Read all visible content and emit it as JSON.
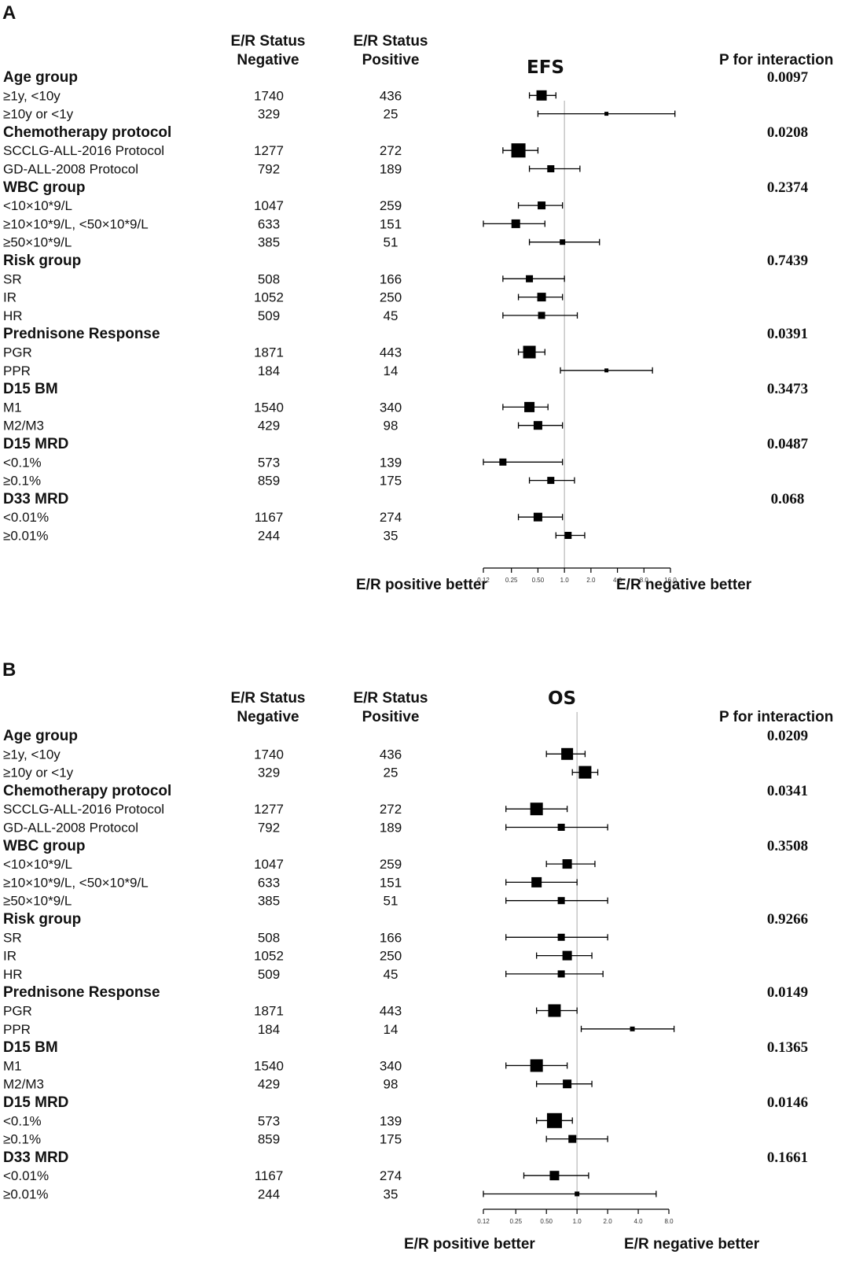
{
  "headers": {
    "negative": [
      "E/R Status",
      "Negative"
    ],
    "positive": [
      "E/R Status",
      "Positive"
    ],
    "p_label": "P for interaction"
  },
  "chart_data": [
    {
      "panel": "A",
      "type": "forest",
      "title": "EFS",
      "scale": "log2",
      "xlim": [
        0.12,
        16.0
      ],
      "ref_line": 1.0,
      "ticks": [
        0.12,
        0.25,
        0.5,
        1.0,
        2.0,
        4.0,
        8.0,
        16.0
      ],
      "tick_labels": [
        "0.12",
        "0.25",
        "0.50",
        "1.0",
        "2.0",
        "4.0",
        "8.0",
        "16.0"
      ],
      "left_label": "E/R positive better",
      "right_label": "E/R negative better",
      "groups": [
        {
          "name": "Age group",
          "p": "0.0097",
          "rows": [
            {
              "label": "≥1y, <10y",
              "neg": "1740",
              "pos": "436",
              "hr": 0.55,
              "lo": 0.4,
              "hi": 0.8,
              "size": 13
            },
            {
              "label": "≥10y or <1y",
              "neg": "329",
              "pos": "25",
              "hr": 3.0,
              "lo": 0.5,
              "hi": 18.0,
              "size": 5
            }
          ]
        },
        {
          "name": "Chemotherapy protocol",
          "p": "0.0208",
          "rows": [
            {
              "label": "SCCLG-ALL-2016 Protocol",
              "neg": "1277",
              "pos": "272",
              "hr": 0.3,
              "lo": 0.2,
              "hi": 0.5,
              "size": 18
            },
            {
              "label": "GD-ALL-2008 Protocol",
              "neg": "792",
              "pos": "189",
              "hr": 0.7,
              "lo": 0.4,
              "hi": 1.5,
              "size": 9
            }
          ]
        },
        {
          "name": "WBC group",
          "p": "0.2374",
          "rows": [
            {
              "label": "<10×10*9/L",
              "neg": "1047",
              "pos": "259",
              "hr": 0.55,
              "lo": 0.3,
              "hi": 0.95,
              "size": 10
            },
            {
              "label": "≥10×10*9/L, <50×10*9/L",
              "neg": "633",
              "pos": "151",
              "hr": 0.28,
              "lo": 0.12,
              "hi": 0.6,
              "size": 11
            },
            {
              "label": "≥50×10*9/L",
              "neg": "385",
              "pos": "51",
              "hr": 0.95,
              "lo": 0.4,
              "hi": 2.5,
              "size": 7
            }
          ]
        },
        {
          "name": "Risk group",
          "p": "0.7439",
          "rows": [
            {
              "label": "SR",
              "neg": "508",
              "pos": "166",
              "hr": 0.4,
              "lo": 0.2,
              "hi": 1.0,
              "size": 9
            },
            {
              "label": "IR",
              "neg": "1052",
              "pos": "250",
              "hr": 0.55,
              "lo": 0.3,
              "hi": 0.95,
              "size": 11
            },
            {
              "label": "HR",
              "neg": "509",
              "pos": "45",
              "hr": 0.55,
              "lo": 0.2,
              "hi": 1.4,
              "size": 9
            }
          ]
        },
        {
          "name": "Prednisone Response",
          "p": "0.0391",
          "rows": [
            {
              "label": "PGR",
              "neg": "1871",
              "pos": "443",
              "hr": 0.4,
              "lo": 0.3,
              "hi": 0.6,
              "size": 16
            },
            {
              "label": "PPR",
              "neg": "184",
              "pos": "14",
              "hr": 3.0,
              "lo": 0.9,
              "hi": 10.0,
              "size": 5
            }
          ]
        },
        {
          "name": "D15 BM",
          "p": "0.3473",
          "rows": [
            {
              "label": "M1",
              "neg": "1540",
              "pos": "340",
              "hr": 0.4,
              "lo": 0.2,
              "hi": 0.65,
              "size": 13
            },
            {
              "label": "M2/M3",
              "neg": "429",
              "pos": "98",
              "hr": 0.5,
              "lo": 0.3,
              "hi": 0.95,
              "size": 11
            }
          ]
        },
        {
          "name": "D15 MRD",
          "p": "0.0487",
          "rows": [
            {
              "label": "<0.1%",
              "neg": "573",
              "pos": "139",
              "hr": 0.2,
              "lo": 0.12,
              "hi": 0.95,
              "size": 9
            },
            {
              "label": "≥0.1%",
              "neg": "859",
              "pos": "175",
              "hr": 0.7,
              "lo": 0.4,
              "hi": 1.3,
              "size": 9
            }
          ]
        },
        {
          "name": "D33 MRD",
          "p": "0.068",
          "rows": [
            {
              "label": "<0.01%",
              "neg": "1167",
              "pos": "274",
              "hr": 0.5,
              "lo": 0.3,
              "hi": 0.95,
              "size": 11
            },
            {
              "label": "≥0.01%",
              "neg": "244",
              "pos": "35",
              "hr": 1.1,
              "lo": 0.8,
              "hi": 1.7,
              "size": 9
            }
          ]
        }
      ]
    },
    {
      "panel": "B",
      "type": "forest",
      "title": "OS",
      "scale": "log2",
      "xlim": [
        0.12,
        8.0
      ],
      "ref_line": 1.0,
      "ticks": [
        0.12,
        0.25,
        0.5,
        1.0,
        2.0,
        4.0,
        8.0
      ],
      "tick_labels": [
        "0.12",
        "0.25",
        "0.50",
        "1.0",
        "2.0",
        "4.0",
        "8.0"
      ],
      "left_label": "E/R positive better",
      "right_label": "E/R negative better",
      "groups": [
        {
          "name": "Age group",
          "p": "0.0209",
          "rows": [
            {
              "label": "≥1y, <10y",
              "neg": "1740",
              "pos": "436",
              "hr": 0.8,
              "lo": 0.5,
              "hi": 1.2,
              "size": 15
            },
            {
              "label": "≥10y or <1y",
              "neg": "329",
              "pos": "25",
              "hr": 1.2,
              "lo": 0.9,
              "hi": 1.6,
              "size": 16
            }
          ]
        },
        {
          "name": "Chemotherapy protocol",
          "p": "0.0341",
          "rows": [
            {
              "label": "SCCLG-ALL-2016 Protocol",
              "neg": "1277",
              "pos": "272",
              "hr": 0.4,
              "lo": 0.2,
              "hi": 0.8,
              "size": 16
            },
            {
              "label": "GD-ALL-2008 Protocol",
              "neg": "792",
              "pos": "189",
              "hr": 0.7,
              "lo": 0.2,
              "hi": 2.0,
              "size": 9
            }
          ]
        },
        {
          "name": "WBC group",
          "p": "0.3508",
          "rows": [
            {
              "label": "<10×10*9/L",
              "neg": "1047",
              "pos": "259",
              "hr": 0.8,
              "lo": 0.5,
              "hi": 1.5,
              "size": 12
            },
            {
              "label": "≥10×10*9/L, <50×10*9/L",
              "neg": "633",
              "pos": "151",
              "hr": 0.4,
              "lo": 0.2,
              "hi": 1.0,
              "size": 13
            },
            {
              "label": "≥50×10*9/L",
              "neg": "385",
              "pos": "51",
              "hr": 0.7,
              "lo": 0.2,
              "hi": 2.0,
              "size": 9
            }
          ]
        },
        {
          "name": "Risk group",
          "p": "0.9266",
          "rows": [
            {
              "label": "SR",
              "neg": "508",
              "pos": "166",
              "hr": 0.7,
              "lo": 0.2,
              "hi": 2.0,
              "size": 9
            },
            {
              "label": "IR",
              "neg": "1052",
              "pos": "250",
              "hr": 0.8,
              "lo": 0.4,
              "hi": 1.4,
              "size": 12
            },
            {
              "label": "HR",
              "neg": "509",
              "pos": "45",
              "hr": 0.7,
              "lo": 0.2,
              "hi": 1.8,
              "size": 9
            }
          ]
        },
        {
          "name": "Prednisone Response",
          "p": "0.0149",
          "rows": [
            {
              "label": "PGR",
              "neg": "1871",
              "pos": "443",
              "hr": 0.6,
              "lo": 0.4,
              "hi": 1.0,
              "size": 16
            },
            {
              "label": "PPR",
              "neg": "184",
              "pos": "14",
              "hr": 3.5,
              "lo": 1.1,
              "hi": 9.0,
              "size": 6
            }
          ]
        },
        {
          "name": "D15 BM",
          "p": "0.1365",
          "rows": [
            {
              "label": "M1",
              "neg": "1540",
              "pos": "340",
              "hr": 0.4,
              "lo": 0.2,
              "hi": 0.8,
              "size": 16
            },
            {
              "label": "M2/M3",
              "neg": "429",
              "pos": "98",
              "hr": 0.8,
              "lo": 0.4,
              "hi": 1.4,
              "size": 11
            }
          ]
        },
        {
          "name": "D15 MRD",
          "p": "0.0146",
          "rows": [
            {
              "label": "<0.1%",
              "neg": "573",
              "pos": "139",
              "hr": 0.6,
              "lo": 0.4,
              "hi": 0.9,
              "size": 19
            },
            {
              "label": "≥0.1%",
              "neg": "859",
              "pos": "175",
              "hr": 0.9,
              "lo": 0.5,
              "hi": 2.0,
              "size": 10
            }
          ]
        },
        {
          "name": "D33 MRD",
          "p": "0.1661",
          "rows": [
            {
              "label": "<0.01%",
              "neg": "1167",
              "pos": "274",
              "hr": 0.6,
              "lo": 0.3,
              "hi": 1.3,
              "size": 12
            },
            {
              "label": "≥0.01%",
              "neg": "244",
              "pos": "35",
              "hr": 1.0,
              "lo": 0.12,
              "hi": 6.0,
              "size": 6
            }
          ]
        }
      ]
    }
  ]
}
